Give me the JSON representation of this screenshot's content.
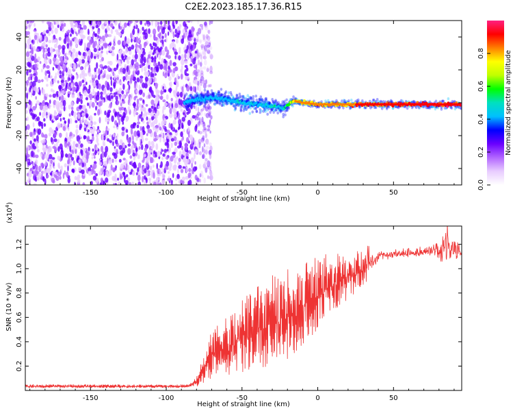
{
  "figure_title": "C2E2.2023.185.17.36.R15",
  "chart_data": [
    {
      "type": "heatmap",
      "xlabel": "Height of straight line (km)",
      "ylabel": "Frequency (Hz)",
      "xlim": [
        -193,
        95
      ],
      "ylim": [
        -50,
        50
      ],
      "x_ticks": [
        -150,
        -100,
        -50,
        0,
        50
      ],
      "x_tick_labels": [
        "-150",
        "-100",
        "-50",
        "0",
        "50"
      ],
      "y_ticks": [
        -40,
        -20,
        0,
        20,
        40
      ],
      "y_tick_labels": [
        "-40",
        "-20",
        "0",
        "20",
        "40"
      ],
      "noise_region_x": [
        -193,
        -80
      ],
      "signal_ridge": {
        "x": [
          -88,
          -80,
          -70,
          -60,
          -50,
          -40,
          -30,
          -22,
          -18,
          -15,
          -10,
          0,
          10,
          20,
          30,
          40,
          50,
          60,
          70,
          80,
          95
        ],
        "freq": [
          0,
          2,
          3,
          2,
          0,
          -1,
          -2,
          -3,
          0,
          1,
          0,
          -1,
          -1,
          -1,
          -1,
          -1,
          -1,
          -1,
          -1,
          -1,
          -1
        ],
        "amplitude": [
          0.3,
          0.3,
          0.35,
          0.4,
          0.45,
          0.45,
          0.5,
          0.5,
          0.7,
          0.8,
          0.8,
          0.85,
          0.85,
          0.85,
          0.9,
          0.9,
          0.9,
          0.92,
          0.95,
          0.95,
          0.95
        ]
      },
      "colorbar": {
        "label": "Normalized spectral amplitude",
        "range": [
          0,
          1
        ],
        "ticks": [
          0.0,
          0.2,
          0.4,
          0.6,
          0.8
        ],
        "tick_labels": [
          "0.0",
          "0.2",
          "0.4",
          "0.6",
          "0.8"
        ],
        "colors": [
          "#ffffff",
          "#e8ccff",
          "#b266ff",
          "#6a00ff",
          "#0000ff",
          "#00c0ff",
          "#00e0c0",
          "#00ff00",
          "#c0ff00",
          "#ffff00",
          "#ff8000",
          "#ff0000",
          "#ff2080"
        ]
      }
    },
    {
      "type": "line",
      "xlabel": "Height of straight line (km)",
      "ylabel": "SNR (10 * v/v)",
      "y_scale_label": "(x10",
      "y_scale_exp": "4",
      "y_scale_close": ")",
      "xlim": [
        -193,
        95
      ],
      "ylim": [
        0,
        13500
      ],
      "x_ticks": [
        -150,
        -100,
        -50,
        0,
        50
      ],
      "x_tick_labels": [
        "-150",
        "-100",
        "-50",
        "0",
        "50"
      ],
      "y_ticks": [
        2000,
        4000,
        6000,
        8000,
        10000,
        12000
      ],
      "y_tick_labels": [
        "0.2",
        "0.4",
        "0.6",
        "0.8",
        "1.0",
        "1.2"
      ],
      "color": "#ee3333",
      "series": [
        {
          "name": "SNR",
          "envelope_x": [
            -193,
            -100,
            -85,
            -80,
            -75,
            -70,
            -60,
            -50,
            -40,
            -30,
            -20,
            -10,
            0,
            10,
            20,
            30,
            40,
            50,
            60,
            70,
            80,
            85,
            90,
            95
          ],
          "envelope_low": [
            200,
            200,
            200,
            300,
            600,
            1000,
            1200,
            1500,
            1800,
            2000,
            2500,
            3500,
            5000,
            6500,
            7500,
            8500,
            10800,
            10900,
            11000,
            11000,
            11000,
            10500,
            10500,
            10800
          ],
          "envelope_high": [
            500,
            500,
            500,
            1200,
            3000,
            5000,
            6000,
            7500,
            8500,
            9500,
            10000,
            10500,
            11000,
            11400,
            11500,
            11500,
            11400,
            11500,
            11600,
            11700,
            12200,
            13300,
            12500,
            11800
          ]
        }
      ]
    }
  ]
}
